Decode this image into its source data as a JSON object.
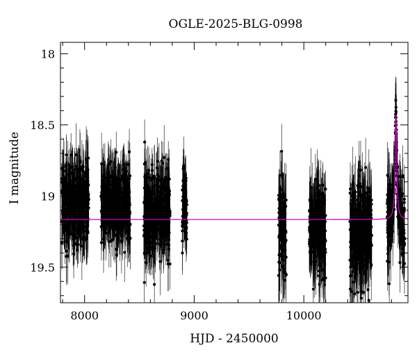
{
  "chart_data": {
    "type": "scatter",
    "title": "OGLE-2025-BLG-0998",
    "xlabel": "HJD - 2450000",
    "ylabel": "I magnitude",
    "xlim": [
      7780,
      10950
    ],
    "ylim": [
      19.75,
      17.92
    ],
    "y_inverted": true,
    "x_ticks": [
      8000,
      9000,
      10000
    ],
    "y_ticks": [
      18,
      18.5,
      19,
      19.5
    ],
    "x_tick_labels": [
      "8000",
      "9000",
      "10000"
    ],
    "y_tick_labels": [
      "18",
      "18.5",
      "19",
      "19.5"
    ],
    "grid": false,
    "series": [
      {
        "kind": "photometry",
        "color": "#000000",
        "seasons": [
          {
            "x_range": [
              7790,
              8040
            ],
            "mag_mean": 19.05,
            "mag_sd": 0.14,
            "err": 0.17
          },
          {
            "x_range": [
              8150,
              8420
            ],
            "mag_mean": 19.05,
            "mag_sd": 0.13,
            "err": 0.17
          },
          {
            "x_range": [
              8540,
              8780
            ],
            "mag_mean": 19.12,
            "mag_sd": 0.15,
            "err": 0.17
          },
          {
            "x_range": [
              8890,
              8935
            ],
            "mag_mean": 19.1,
            "mag_sd": 0.12,
            "err": 0.15
          },
          {
            "x_range": [
              9770,
              9840
            ],
            "mag_mean": 19.22,
            "mag_sd": 0.17,
            "err": 0.2
          },
          {
            "x_range": [
              10050,
              10200
            ],
            "mag_mean": 19.22,
            "mag_sd": 0.16,
            "err": 0.2
          },
          {
            "x_range": [
              10420,
              10620
            ],
            "mag_mean": 19.25,
            "mag_sd": 0.17,
            "err": 0.2
          },
          {
            "x_range": [
              10760,
              10920
            ],
            "mag_mean": 19.18,
            "mag_sd": 0.15,
            "err": 0.18
          }
        ]
      },
      {
        "kind": "model",
        "color": "#cc00cc",
        "baseline": 19.165,
        "peak_mag": 18.43,
        "t0": 10840,
        "width": 18
      }
    ]
  }
}
